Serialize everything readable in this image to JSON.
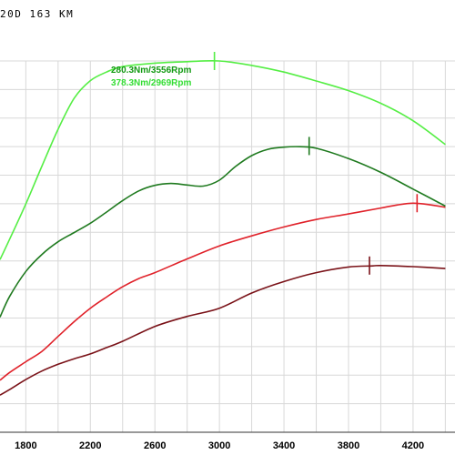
{
  "title": "20D 163 KM",
  "chart_data": {
    "type": "line",
    "title": "",
    "xlabel": "",
    "ylabel": "",
    "xlim": [
      1640,
      4460
    ],
    "ylim": [
      0,
      100
    ],
    "grid": true,
    "x_ticks": [
      "1800",
      "2200",
      "2600",
      "3000",
      "3400",
      "3800",
      "4200"
    ],
    "annotations": [
      {
        "text": "280.3Nm/3556Rpm",
        "color": "#119911"
      },
      {
        "text": "378.3Nm/2969Rpm",
        "color": "#33dd33"
      }
    ],
    "series": [
      {
        "color": "#55ee44",
        "x": [
          1640,
          1700,
          1800,
          1900,
          2000,
          2100,
          2200,
          2300,
          2400,
          2600,
          2800,
          3000,
          3200,
          3400,
          3600,
          3800,
          4000,
          4200,
          4400
        ],
        "y": [
          46.5,
          52,
          61.5,
          71.7,
          81.6,
          90,
          94.7,
          97,
          98.5,
          99.4,
          99.8,
          100,
          98.8,
          97,
          94.6,
          92,
          88.6,
          83.9,
          77.5
        ],
        "peak": {
          "x": 2969,
          "y": 100
        }
      },
      {
        "color": "#1f7a1f",
        "x": [
          1640,
          1700,
          1800,
          1900,
          2000,
          2100,
          2200,
          2300,
          2400,
          2500,
          2600,
          2700,
          2800,
          2900,
          3000,
          3100,
          3200,
          3300,
          3400,
          3500,
          3600,
          3800,
          4000,
          4200,
          4400
        ],
        "y": [
          31,
          36.6,
          43.3,
          47.9,
          51.3,
          53.8,
          56.3,
          59.3,
          62.4,
          65,
          66.5,
          67,
          66.6,
          66.3,
          67.9,
          71.6,
          74.5,
          76.2,
          76.8,
          76.9,
          76.5,
          73.7,
          70,
          65.5,
          60.9
        ],
        "peak": {
          "x": 3556,
          "y": 77.1
        }
      },
      {
        "color": "#e0222a",
        "x": [
          1640,
          1700,
          1800,
          1900,
          2000,
          2100,
          2200,
          2300,
          2400,
          2500,
          2600,
          2800,
          3000,
          3200,
          3400,
          3600,
          3800,
          4000,
          4100,
          4200,
          4300,
          4400
        ],
        "y": [
          14,
          16.1,
          19,
          21.8,
          25.8,
          29.8,
          33.4,
          36.4,
          39.2,
          41.4,
          43,
          46.7,
          50.2,
          52.9,
          55.3,
          57.3,
          58.8,
          60.4,
          61.2,
          61.7,
          61.3,
          60.6
        ],
        "peak": {
          "x": 4225,
          "y": 61.7
        }
      },
      {
        "color": "#7a1218",
        "x": [
          1640,
          1700,
          1800,
          1900,
          2000,
          2100,
          2200,
          2300,
          2400,
          2600,
          2800,
          3000,
          3200,
          3400,
          3600,
          3800,
          3950,
          4000,
          4200,
          4400
        ],
        "y": [
          10,
          11.5,
          14.2,
          16.5,
          18.3,
          19.8,
          21.1,
          22.8,
          24.5,
          28.5,
          31.2,
          33.4,
          37.5,
          40.6,
          43,
          44.5,
          44.8,
          44.9,
          44.6,
          44.1
        ],
        "peak": {
          "x": 3930,
          "y": 44.9
        }
      }
    ]
  }
}
